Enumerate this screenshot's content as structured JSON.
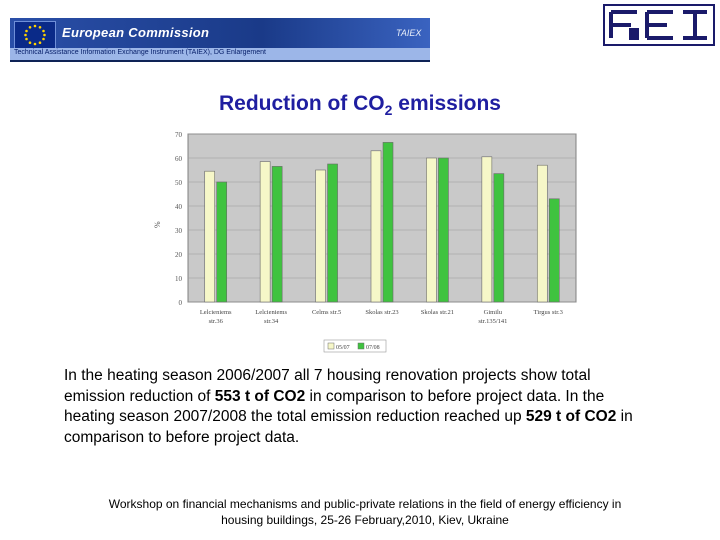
{
  "header": {
    "ec_title": "European Commission",
    "ec_program": "TAIEX",
    "ec_subtitle": "Technical Assistance Information Exchange Instrument (TAIEX), DG Enlargement"
  },
  "slide": {
    "title_before_sub": "Reduction of CO",
    "title_sub": "2",
    "title_after_sub": " emissions"
  },
  "chart_data": {
    "type": "bar",
    "ylabel": "%",
    "ylim": [
      0,
      70
    ],
    "yticks": [
      0,
      10,
      20,
      30,
      40,
      50,
      60,
      70
    ],
    "categories": [
      [
        "Lelcieniems",
        "str.36"
      ],
      [
        "Lelcieniems",
        "str.34"
      ],
      [
        "Celms str.5"
      ],
      [
        "Skolas str.23"
      ],
      [
        "Skolas str.21"
      ],
      [
        "Gimilu",
        "str.135/141"
      ],
      [
        "Tirgus str.3"
      ]
    ],
    "series": [
      {
        "name": "05/07",
        "color": "#f6f7c8",
        "values": [
          54.5,
          58.5,
          55,
          63,
          60,
          60.5,
          57
        ]
      },
      {
        "name": "07/08",
        "color": "#3fc33f",
        "values": [
          50,
          56.5,
          57.5,
          66.5,
          60,
          53.5,
          43
        ]
      }
    ],
    "plot_background": "#c9c9c9",
    "grid": true,
    "legend": "bottom-center"
  },
  "body": {
    "p1": "In the heating season 2006/2007 all 7 housing renovation projects show total emission reduction of ",
    "b1": "553 t of CO2",
    "p2": " in comparison to before project data.  In the heating season 2007/2008 the total emission reduction reached up ",
    "b2": "529 t of CO2",
    "p3": " in comparison to before project data."
  },
  "footer": {
    "line1": "Workshop on financial mechanisms and public-private relations in the field of energy efficiency in",
    "line2": "housing buildings, 25-26 February,2010, Kiev, Ukraine"
  }
}
